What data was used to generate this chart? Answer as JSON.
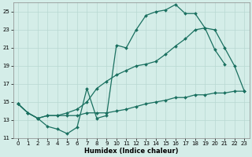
{
  "xlabel": "Humidex (Indice chaleur)",
  "background_color": "#d4ede8",
  "grid_color": "#b8d8d2",
  "line_color": "#1a7060",
  "xlim": [
    -0.5,
    23.5
  ],
  "ylim": [
    11,
    26
  ],
  "yticks": [
    11,
    13,
    15,
    17,
    19,
    21,
    23,
    25
  ],
  "xticks": [
    0,
    1,
    2,
    3,
    4,
    5,
    6,
    7,
    8,
    9,
    10,
    11,
    12,
    13,
    14,
    15,
    16,
    17,
    18,
    19,
    20,
    21,
    22,
    23
  ],
  "s1x": [
    0,
    1,
    2,
    3,
    4,
    5,
    6,
    7,
    8,
    9,
    10,
    11,
    12,
    13,
    14,
    15,
    16,
    17,
    18,
    19,
    20,
    21
  ],
  "s1y": [
    14.8,
    13.8,
    13.2,
    12.3,
    12.0,
    11.5,
    12.2,
    16.5,
    13.2,
    13.5,
    21.3,
    21.0,
    23.0,
    24.6,
    25.0,
    25.2,
    25.8,
    24.8,
    24.8,
    23.2,
    20.8,
    19.2
  ],
  "s2x": [
    0,
    1,
    2,
    3,
    4,
    5,
    6,
    7,
    8,
    9,
    10,
    11,
    12,
    13,
    14,
    15,
    16,
    17,
    18,
    19,
    20,
    21,
    22,
    23
  ],
  "s2y": [
    14.8,
    13.8,
    13.2,
    13.5,
    13.5,
    13.8,
    14.2,
    15.0,
    16.5,
    17.3,
    18.0,
    18.5,
    19.0,
    19.2,
    19.5,
    20.3,
    21.2,
    22.0,
    23.0,
    23.2,
    23.0,
    21.0,
    19.0,
    16.2
  ],
  "s3x": [
    0,
    1,
    2,
    3,
    4,
    5,
    6,
    7,
    8,
    9,
    10,
    11,
    12,
    13,
    14,
    15,
    16,
    17,
    18,
    19,
    20,
    21,
    22,
    23
  ],
  "s3y": [
    14.8,
    13.8,
    13.2,
    13.5,
    13.5,
    13.5,
    13.5,
    13.8,
    13.8,
    13.8,
    14.0,
    14.2,
    14.5,
    14.8,
    15.0,
    15.2,
    15.5,
    15.5,
    15.8,
    15.8,
    16.0,
    16.0,
    16.2,
    16.2
  ],
  "markersize": 2.0,
  "linewidth": 0.9
}
